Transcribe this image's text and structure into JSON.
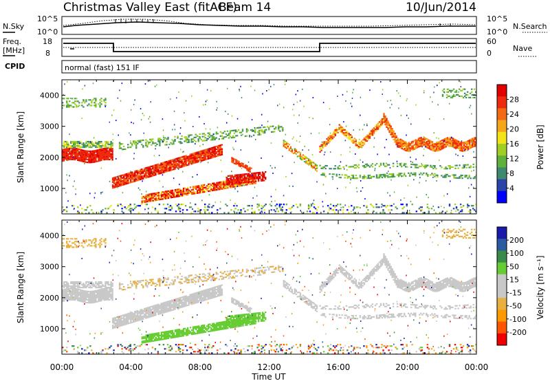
{
  "header": {
    "station": "Christmas Valley East (fitACF)",
    "beam": "Beam 14",
    "date": "10/Jun/2014"
  },
  "panels": {
    "nsky_label": "N.Sky",
    "nsearch_label": "N.Search",
    "freq_label": "Freq.",
    "freq_unit": "[MHz]",
    "nave_label": "Nave",
    "cpid_label": "CPID",
    "cpid_value": "normal (fast) 151 IF",
    "noise_ticks_left": [
      "10^5",
      "10^0"
    ],
    "noise_ticks_right": [
      "10^5",
      "10^0"
    ],
    "freq_ticks": [
      "18",
      "8"
    ],
    "nave_ticks": [
      "60",
      "0"
    ]
  },
  "colors": {
    "power": [
      "#0000ff",
      "#2a44a8",
      "#3f8a6e",
      "#5fb13c",
      "#9fcf22",
      "#f4e31a",
      "#f6a61a",
      "#f46a14",
      "#ee2a0c",
      "#e00000"
    ],
    "velocity": [
      "#ee0000",
      "#ff5500",
      "#ff9900",
      "#e8b040",
      "#c8c8c8",
      "#c8c8c8",
      "#66cc33",
      "#3a8a4a",
      "#2a5aa0",
      "#1a1aaa"
    ]
  },
  "chart_data": [
    {
      "type": "heatmap",
      "name": "power",
      "xlabel": "",
      "ylabel": "Slant Range [km]",
      "x_range_hours": [
        0,
        24
      ],
      "ylim": [
        180,
        4500
      ],
      "y_ticks": [
        "1000",
        "2000",
        "3000",
        "4000"
      ],
      "colorbar_label": "Power [dB]",
      "colorbar_ticks": [
        "4",
        "8",
        "12",
        "16",
        "20",
        "24",
        "28"
      ]
    },
    {
      "type": "heatmap",
      "name": "velocity",
      "xlabel": "Time UT",
      "ylabel": "Slant Range [km]",
      "x_range_hours": [
        0,
        24
      ],
      "x_ticks": [
        "00:00",
        "04:00",
        "08:00",
        "12:00",
        "16:00",
        "20:00",
        "00:00"
      ],
      "ylim": [
        180,
        4500
      ],
      "y_ticks": [
        "1000",
        "2000",
        "3000",
        "4000"
      ],
      "colorbar_label": "Velocity [m s⁻¹]",
      "colorbar_ticks": [
        "200",
        "100",
        "50",
        "15",
        "-15",
        "-50",
        "-100",
        "-200"
      ]
    }
  ]
}
